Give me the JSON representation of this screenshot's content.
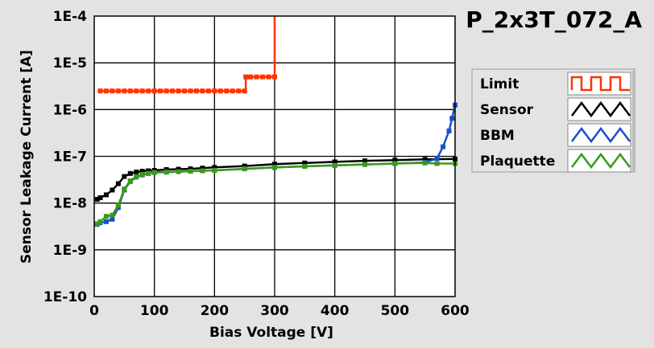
{
  "chart_data": {
    "type": "line",
    "title": "P_2x3T_072_A",
    "xlabel": "Bias Voltage [V]",
    "ylabel": "Sensor Leakage Current [A]",
    "xlim": [
      0,
      600
    ],
    "ylim": [
      1e-10,
      0.0001
    ],
    "yscale": "log",
    "grid": true,
    "legend_position": "right",
    "x_ticks": [
      "0",
      "100",
      "200",
      "300",
      "400",
      "500",
      "600"
    ],
    "y_ticks": [
      "1E-10",
      "1E-9",
      "1E-8",
      "1E-7",
      "1E-6",
      "1E-5",
      "1E-4"
    ],
    "series": [
      {
        "name": "Limit",
        "color": "#ff3300",
        "x": [
          10,
          20,
          30,
          40,
          50,
          60,
          70,
          80,
          90,
          100,
          110,
          120,
          130,
          140,
          150,
          160,
          170,
          180,
          190,
          200,
          210,
          220,
          230,
          240,
          250,
          252,
          260,
          270,
          280,
          290,
          300,
          300
        ],
        "y": [
          2.5e-06,
          2.5e-06,
          2.5e-06,
          2.5e-06,
          2.5e-06,
          2.5e-06,
          2.5e-06,
          2.5e-06,
          2.5e-06,
          2.5e-06,
          2.5e-06,
          2.5e-06,
          2.5e-06,
          2.5e-06,
          2.5e-06,
          2.5e-06,
          2.5e-06,
          2.5e-06,
          2.5e-06,
          2.5e-06,
          2.5e-06,
          2.5e-06,
          2.5e-06,
          2.5e-06,
          2.5e-06,
          5e-06,
          5e-06,
          5e-06,
          5e-06,
          5e-06,
          5e-06,
          0.0001
        ]
      },
      {
        "name": "Sensor",
        "color": "#000000",
        "x": [
          5,
          10,
          20,
          30,
          40,
          50,
          60,
          70,
          80,
          90,
          100,
          120,
          140,
          160,
          180,
          200,
          250,
          300,
          350,
          400,
          450,
          500,
          550,
          600
        ],
        "y": [
          1.2e-08,
          1.3e-08,
          1.5e-08,
          1.9e-08,
          2.6e-08,
          3.7e-08,
          4.3e-08,
          4.6e-08,
          4.8e-08,
          4.9e-08,
          5e-08,
          5.2e-08,
          5.3e-08,
          5.4e-08,
          5.6e-08,
          5.8e-08,
          6.2e-08,
          6.8e-08,
          7.2e-08,
          7.6e-08,
          8e-08,
          8.3e-08,
          8.6e-08,
          8.8e-08
        ]
      },
      {
        "name": "BBM",
        "color": "#1a4fcc",
        "x": [
          5,
          10,
          20,
          30,
          40,
          50,
          60,
          70,
          80,
          90,
          100,
          120,
          140,
          160,
          180,
          200,
          250,
          300,
          350,
          400,
          450,
          500,
          550,
          570,
          580,
          590,
          595,
          600
        ],
        "y": [
          3.5e-09,
          3.8e-09,
          4e-09,
          4.5e-09,
          8e-09,
          1.9e-08,
          2.9e-08,
          3.6e-08,
          4e-08,
          4.3e-08,
          4.5e-08,
          4.6e-08,
          4.7e-08,
          4.8e-08,
          4.9e-08,
          5e-08,
          5.4e-08,
          5.8e-08,
          6.1e-08,
          6.4e-08,
          6.7e-08,
          7e-08,
          7.4e-08,
          9e-08,
          1.6e-07,
          3.5e-07,
          6.5e-07,
          1.25e-06
        ]
      },
      {
        "name": "Plaquette",
        "color": "#3a9a1a",
        "x": [
          5,
          10,
          20,
          30,
          40,
          50,
          60,
          70,
          80,
          90,
          100,
          120,
          140,
          160,
          180,
          200,
          250,
          300,
          350,
          400,
          450,
          500,
          550,
          570,
          600
        ],
        "y": [
          3.6e-09,
          4e-09,
          5.2e-09,
          5.5e-09,
          9e-09,
          2e-08,
          3e-08,
          3.7e-08,
          4.1e-08,
          4.3e-08,
          4.5e-08,
          4.6e-08,
          4.7e-08,
          4.8e-08,
          4.9e-08,
          5e-08,
          5.4e-08,
          5.8e-08,
          6.1e-08,
          6.4e-08,
          6.7e-08,
          7e-08,
          7.2e-08,
          7e-08,
          7e-08
        ]
      }
    ]
  }
}
